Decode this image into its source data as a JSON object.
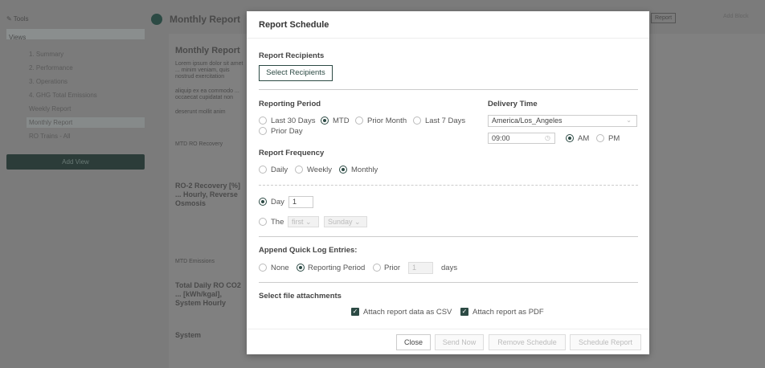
{
  "background": {
    "sidebar": {
      "tools_label": "Tools",
      "views_label": "Views",
      "items": [
        "1. Summary",
        "2. Performance",
        "3. Operations",
        "4. GHG Total Emissions",
        "Weekly Report",
        "Monthly Report",
        "RO Trains - All"
      ],
      "add_view_label": "Add View"
    },
    "page_title": "Monthly Report",
    "report_heading": "Monthly Report",
    "description": [
      "Lorem ipsum dolor sit amet ... minim veniam, quis nostrud exercitation",
      "aliquip ex ea commodo ... occaecat cupidatat non",
      "deserunt mollit anim"
    ],
    "sections": [
      "MTD RO Recovery",
      "RO-2 Recovery [%] ... Hourly, Reverse Osmosis",
      "MTD Emissions",
      "Total Daily RO CO2 ... [kWh/kgal], System Hourly",
      "System"
    ],
    "header_buttons": [
      "Report",
      "Add Block"
    ]
  },
  "modal": {
    "title": "Report Schedule",
    "recipients": {
      "label": "Report Recipients",
      "button": "Select Recipients"
    },
    "reporting_period": {
      "label": "Reporting Period",
      "options": [
        "Last 30 Days",
        "MTD",
        "Prior Month",
        "Last 7 Days",
        "Prior Day"
      ],
      "selected": "MTD"
    },
    "delivery_time": {
      "label": "Delivery Time",
      "timezone": "America/Los_Angeles",
      "time": "09:00",
      "ampm_options": [
        "AM",
        "PM"
      ],
      "selected_ampm": "AM"
    },
    "frequency": {
      "label": "Report Frequency",
      "options": [
        "Daily",
        "Weekly",
        "Monthly"
      ],
      "selected": "Monthly"
    },
    "monthly": {
      "day_label": "Day",
      "day_value": "1",
      "the_label": "The",
      "ordinal": "first",
      "weekday": "Sunday",
      "selected": "Day"
    },
    "quick_log": {
      "label": "Append Quick Log Entries:",
      "options": [
        "None",
        "Reporting Period",
        "Prior"
      ],
      "selected": "Reporting Period",
      "prior_days": "1",
      "days_label": "days"
    },
    "attachments": {
      "label": "Select file attachments",
      "csv": "Attach report data as CSV",
      "csv_checked": true,
      "pdf": "Attach report as PDF",
      "pdf_checked": true
    },
    "footer": {
      "close": "Close",
      "send_now": "Send Now",
      "remove": "Remove Schedule",
      "schedule": "Schedule Report"
    }
  },
  "colors": {
    "accent": "#2c4a44",
    "overlay": "#7b7b7b"
  }
}
